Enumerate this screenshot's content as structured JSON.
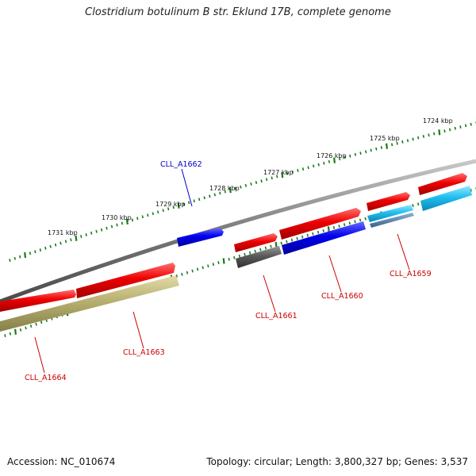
{
  "title": "Clostridium botulinum B str. Eklund 17B, complete genome",
  "footer": {
    "accession": "Accession: NC_010674",
    "summary": "Topology: circular; Length: 3,800,327 bp; Genes: 3,537"
  },
  "kbp_labels": [
    "1731 kbp",
    "1730 kbp",
    "1729 kbp",
    "1728 kbp",
    "1727 kbp",
    "1726 kbp",
    "1725 kbp",
    "1724 kbp"
  ],
  "gene_labels": [
    {
      "id": "CLL_A1662",
      "color": "#0000cc"
    },
    {
      "id": "CLL_A1659",
      "color": "#cc0000"
    },
    {
      "id": "CLL_A1660",
      "color": "#cc0000"
    },
    {
      "id": "CLL_A1661",
      "color": "#cc0000"
    },
    {
      "id": "CLL_A1663",
      "color": "#cc0000"
    },
    {
      "id": "CLL_A1664",
      "color": "#cc0000"
    }
  ],
  "colors": {
    "backbone": "#808080",
    "cds_red": "#e00000",
    "cds_blue": "#0000e0",
    "cds_cyan": "#18b4e8",
    "cds_steel": "#4a7fb0",
    "cds_gray": "#5a5a5a",
    "cds_olive": "#b8b070",
    "tick_green": "#1a7a1a"
  }
}
